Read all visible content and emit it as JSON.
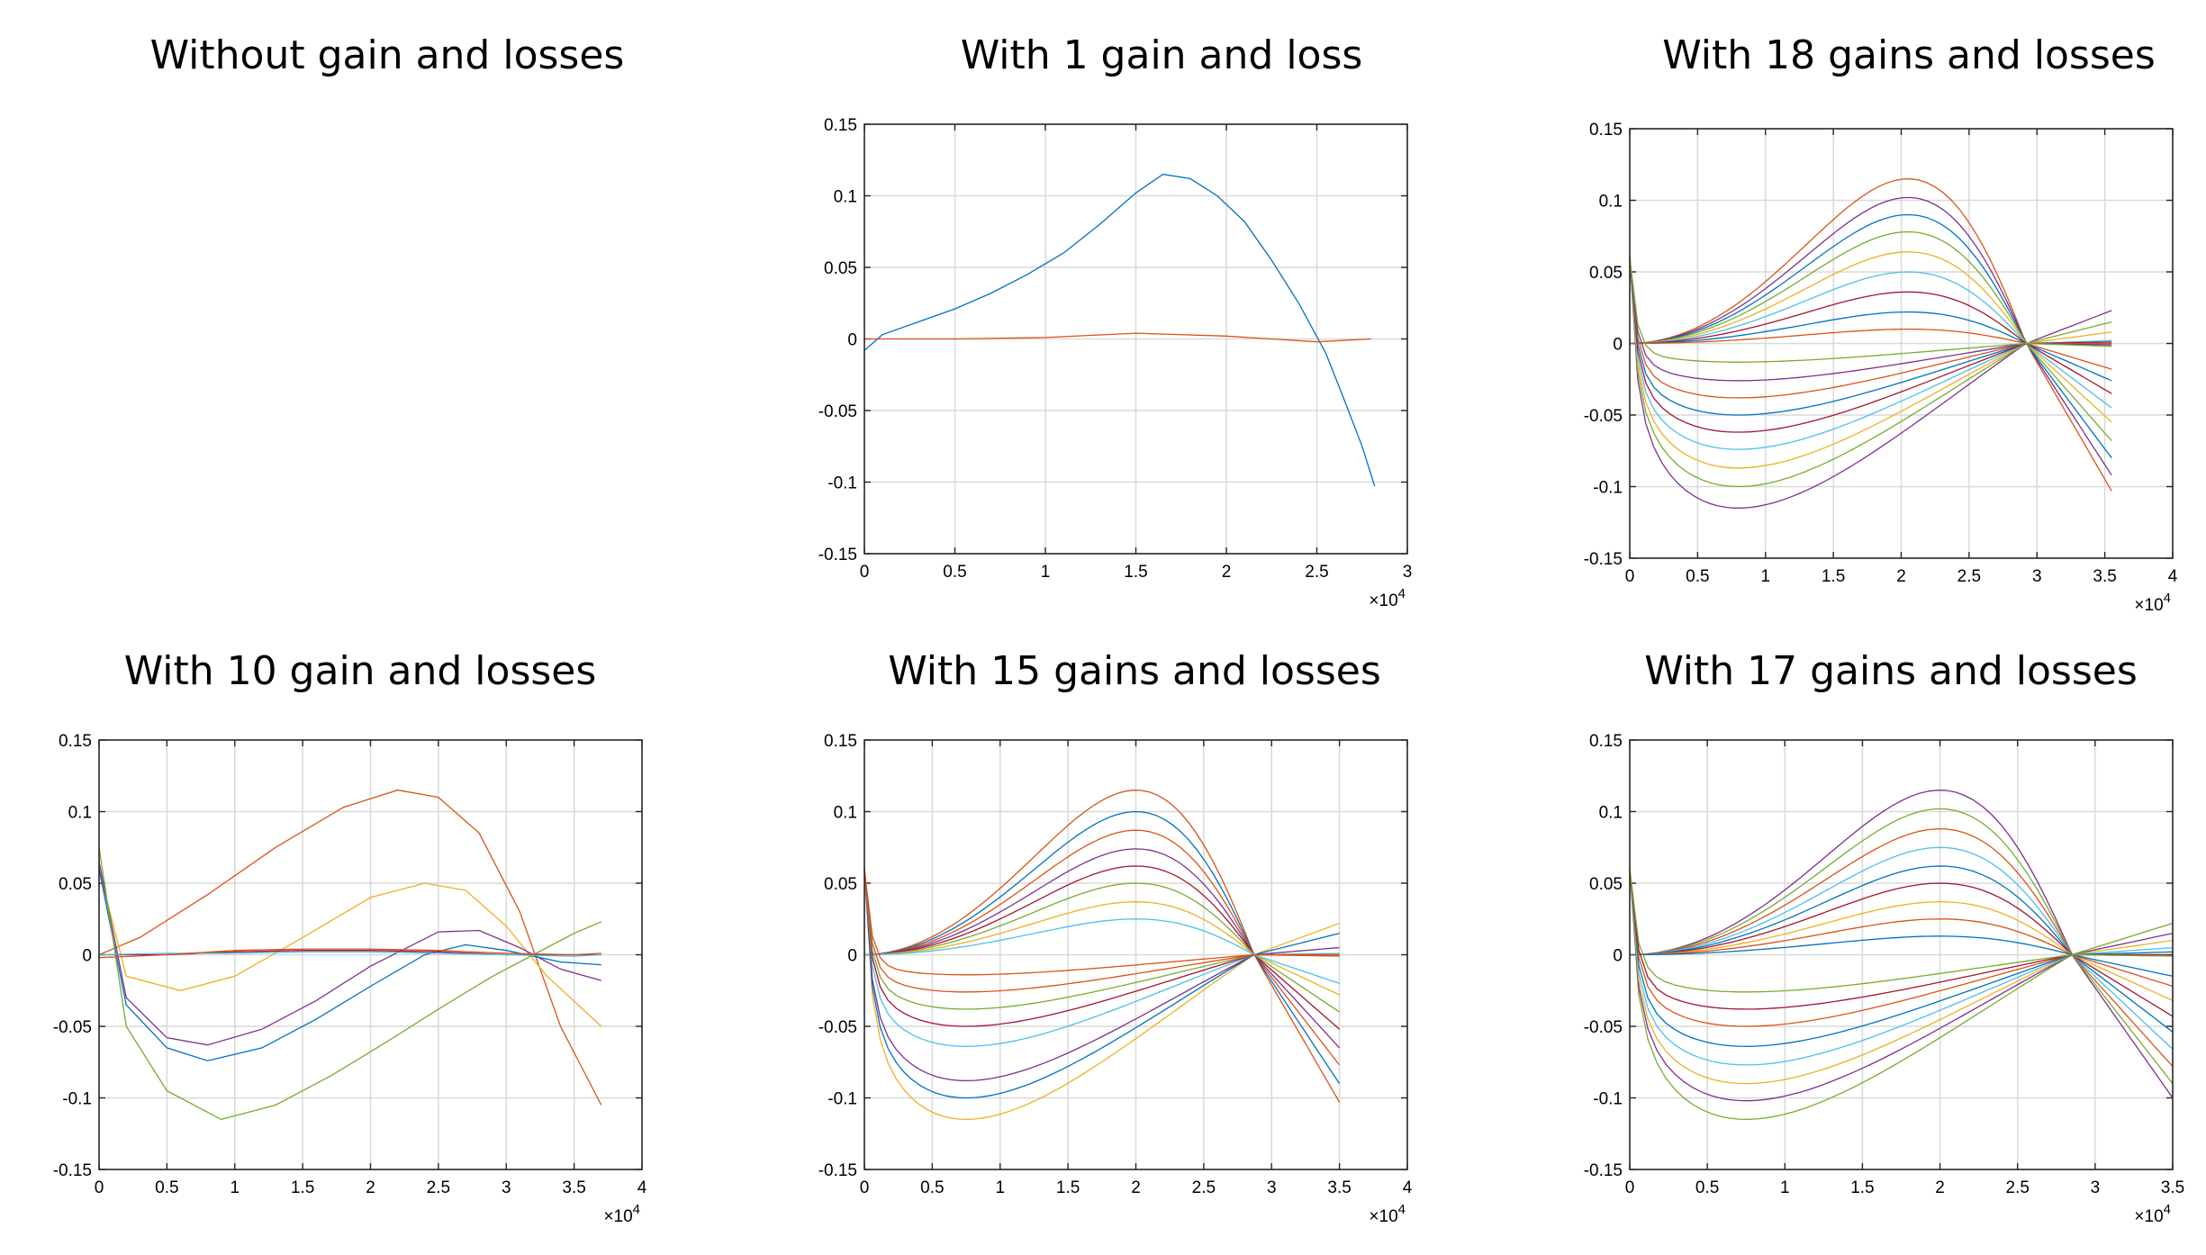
{
  "chart_data": [
    {
      "title": "Without gain and losses",
      "type": "line",
      "empty": true,
      "series": []
    },
    {
      "title": "With 1 gain and loss",
      "type": "line",
      "xlim": [
        0,
        3
      ],
      "ylim": [
        -0.15,
        0.15
      ],
      "xticks": [
        "0",
        "0.5",
        "1",
        "1.5",
        "2",
        "2.5",
        "3"
      ],
      "yticks": [
        "0.15",
        "0.1",
        "0.05",
        "0",
        "-0.05",
        "-0.1",
        "-0.15"
      ],
      "x_exponent_label": "×10",
      "x_exponent": "4",
      "grid": true,
      "series": [
        {
          "color": "#0072bd",
          "x": [
            0,
            0.1,
            0.3,
            0.5,
            0.7,
            0.9,
            1.1,
            1.3,
            1.5,
            1.65,
            1.8,
            1.95,
            2.1,
            2.25,
            2.4,
            2.55,
            2.65,
            2.75,
            2.82
          ],
          "y": [
            -0.008,
            0.003,
            0.012,
            0.021,
            0.032,
            0.045,
            0.06,
            0.08,
            0.102,
            0.115,
            0.112,
            0.1,
            0.082,
            0.055,
            0.025,
            -0.01,
            -0.042,
            -0.075,
            -0.103
          ]
        },
        {
          "color": "#d95319",
          "x": [
            0,
            0.5,
            1,
            1.5,
            2,
            2.5,
            2.8
          ],
          "y": [
            0,
            0,
            0.001,
            0.004,
            0.002,
            -0.002,
            0
          ]
        }
      ]
    },
    {
      "title": "With 18 gains and losses",
      "type": "line",
      "xlim": [
        0,
        4
      ],
      "ylim": [
        -0.15,
        0.15
      ],
      "xticks": [
        "0",
        "0.5",
        "1",
        "1.5",
        "2",
        "2.5",
        "3",
        "3.5",
        "4"
      ],
      "yticks": [
        "0.15",
        "0.1",
        "0.05",
        "0",
        "-0.05",
        "-0.1",
        "-0.15"
      ],
      "x_exponent_label": "×10",
      "x_exponent": "4",
      "grid": true,
      "end_x": 3.55,
      "cross_x": 2.92,
      "peaks": [
        0.115,
        0.102,
        0.09,
        0.078,
        0.064,
        0.05,
        0.036,
        0.022,
        0.01
      ],
      "troughs": [
        -0.115,
        -0.1,
        -0.087,
        -0.074,
        -0.062,
        -0.05,
        -0.038,
        -0.026,
        -0.013
      ],
      "endvals": [
        -0.103,
        -0.092,
        -0.08,
        -0.068,
        -0.055,
        -0.045,
        -0.035,
        -0.026,
        -0.018,
        0.023,
        0.015,
        0.008,
        0.002,
        0.001,
        0,
        0,
        -0.001,
        -0.002
      ],
      "peak_x": 2.05,
      "trough_x": 0.8,
      "colors": [
        "#d95319",
        "#7e2f8e",
        "#0072bd",
        "#77ac30",
        "#edb120",
        "#4dbeee",
        "#a2142f",
        "#0072bd",
        "#d95319",
        "#7e2f8e",
        "#77ac30",
        "#edb120",
        "#4dbeee",
        "#a2142f",
        "#0072bd",
        "#d95319",
        "#7e2f8e",
        "#77ac30"
      ]
    },
    {
      "title": "With 10 gain and losses",
      "type": "line",
      "xlim": [
        0,
        4
      ],
      "ylim": [
        -0.15,
        0.15
      ],
      "xticks": [
        "0",
        "0.5",
        "1",
        "1.5",
        "2",
        "2.5",
        "3",
        "3.5",
        "4"
      ],
      "yticks": [
        "0.15",
        "0.1",
        "0.05",
        "0",
        "-0.05",
        "-0.1",
        "-0.15"
      ],
      "x_exponent_label": "×10",
      "x_exponent": "4",
      "grid": true,
      "series": [
        {
          "color": "#d95319",
          "x": [
            0,
            0.3,
            0.8,
            1.3,
            1.8,
            2.2,
            2.5,
            2.8,
            3.1,
            3.4,
            3.7
          ],
          "y": [
            0,
            0.012,
            0.042,
            0.075,
            0.103,
            0.115,
            0.11,
            0.085,
            0.03,
            -0.05,
            -0.105
          ]
        },
        {
          "color": "#edb120",
          "x": [
            0,
            0.2,
            0.6,
            1,
            1.5,
            2,
            2.4,
            2.7,
            3,
            3.3,
            3.7
          ],
          "y": [
            0.06,
            -0.015,
            -0.025,
            -0.015,
            0.012,
            0.04,
            0.05,
            0.045,
            0.02,
            -0.015,
            -0.05
          ]
        },
        {
          "color": "#7e2f8e",
          "x": [
            0,
            0.2,
            0.5,
            0.8,
            1.2,
            1.6,
            2,
            2.5,
            2.8,
            3.1,
            3.4,
            3.7
          ],
          "y": [
            0.065,
            -0.03,
            -0.058,
            -0.063,
            -0.052,
            -0.032,
            -0.008,
            0.016,
            0.017,
            0.005,
            -0.01,
            -0.018
          ]
        },
        {
          "color": "#0072bd",
          "x": [
            0,
            0.2,
            0.5,
            0.8,
            1.2,
            1.6,
            2,
            2.4,
            2.7,
            3,
            3.4,
            3.7
          ],
          "y": [
            0.06,
            -0.035,
            -0.065,
            -0.074,
            -0.065,
            -0.045,
            -0.022,
            0,
            0.007,
            0.003,
            -0.005,
            -0.007
          ]
        },
        {
          "color": "#77ac30",
          "x": [
            0,
            0.2,
            0.5,
            0.9,
            1.3,
            1.7,
            2.1,
            2.5,
            2.9,
            3.2,
            3.5,
            3.7
          ],
          "y": [
            0.075,
            -0.05,
            -0.095,
            -0.115,
            -0.105,
            -0.085,
            -0.062,
            -0.038,
            -0.015,
            0,
            0.015,
            0.023
          ]
        },
        {
          "color": "#a2142f",
          "x": [
            0,
            0.5,
            1,
            1.5,
            2,
            2.5,
            3,
            3.5,
            3.7
          ],
          "y": [
            0,
            0,
            0.002,
            0.003,
            0.003,
            0.002,
            0,
            0,
            0
          ]
        },
        {
          "color": "#4dbeee",
          "x": [
            0,
            0.5,
            1,
            1.5,
            2,
            2.5,
            3,
            3.5,
            3.7
          ],
          "y": [
            0,
            0.001,
            0.001,
            0.002,
            0.002,
            0.001,
            0,
            -0.001,
            0
          ]
        },
        {
          "color": "#d95319",
          "x": [
            0,
            0.5,
            1,
            1.5,
            2,
            2.5,
            3,
            3.5,
            3.7
          ],
          "y": [
            -0.002,
            0,
            0.003,
            0.004,
            0.004,
            0.003,
            0.001,
            0,
            0.001
          ]
        }
      ]
    },
    {
      "title": "With 15 gains and losses",
      "type": "line",
      "xlim": [
        0,
        4
      ],
      "ylim": [
        -0.15,
        0.15
      ],
      "xticks": [
        "0",
        "0.5",
        "1",
        "1.5",
        "2",
        "2.5",
        "3",
        "3.5",
        "4"
      ],
      "yticks": [
        "0.15",
        "0.1",
        "0.05",
        "0",
        "-0.05",
        "-0.1",
        "-0.15"
      ],
      "x_exponent_label": "×10",
      "x_exponent": "4",
      "grid": true,
      "end_x": 3.5,
      "cross_x": 2.87,
      "peaks": [
        0.115,
        0.1,
        0.087,
        0.074,
        0.062,
        0.05,
        0.037,
        0.025
      ],
      "troughs": [
        -0.115,
        -0.1,
        -0.088,
        -0.064,
        -0.05,
        -0.038,
        -0.026,
        -0.014
      ],
      "endvals": [
        -0.103,
        -0.09,
        -0.077,
        -0.065,
        -0.052,
        -0.04,
        -0.028,
        -0.02,
        0.022,
        0.015,
        0.005,
        0.001,
        0,
        0,
        -0.001
      ],
      "peak_x": 2.0,
      "trough_x": 0.75,
      "colors": [
        "#d95319",
        "#0072bd",
        "#d95319",
        "#7e2f8e",
        "#a2142f",
        "#77ac30",
        "#edb120",
        "#4dbeee",
        "#edb120",
        "#0072bd",
        "#7e2f8e",
        "#4dbeee",
        "#a2142f",
        "#77ac30",
        "#d95319"
      ]
    },
    {
      "title": "With 17 gains and losses",
      "type": "line",
      "xlim": [
        0,
        3.5
      ],
      "ylim": [
        -0.15,
        0.15
      ],
      "xticks": [
        "0",
        "0.5",
        "1",
        "1.5",
        "2",
        "2.5",
        "3",
        "3.5"
      ],
      "yticks": [
        "0.15",
        "0.1",
        "0.05",
        "0",
        "-0.05",
        "-0.1",
        "-0.15"
      ],
      "x_exponent_label": "×10",
      "x_exponent": "4",
      "grid": true,
      "end_x": 3.5,
      "cross_x": 2.85,
      "peaks": [
        0.115,
        0.102,
        0.088,
        0.075,
        0.062,
        0.05,
        0.037,
        0.025,
        0.013
      ],
      "troughs": [
        -0.115,
        -0.102,
        -0.09,
        -0.077,
        -0.064,
        -0.05,
        -0.038,
        -0.026
      ],
      "endvals": [
        -0.1,
        -0.09,
        -0.078,
        -0.066,
        -0.054,
        -0.043,
        -0.032,
        -0.022,
        -0.015,
        0.022,
        0.015,
        0.01,
        0.005,
        0.002,
        0,
        0,
        -0.001
      ],
      "peak_x": 2.0,
      "trough_x": 0.75,
      "colors": [
        "#7e2f8e",
        "#77ac30",
        "#d95319",
        "#4dbeee",
        "#0072bd",
        "#a2142f",
        "#edb120",
        "#d95319",
        "#0072bd",
        "#77ac30",
        "#7e2f8e",
        "#edb120",
        "#4dbeee",
        "#0072bd",
        "#d95319",
        "#a2142f",
        "#77ac30"
      ]
    }
  ]
}
